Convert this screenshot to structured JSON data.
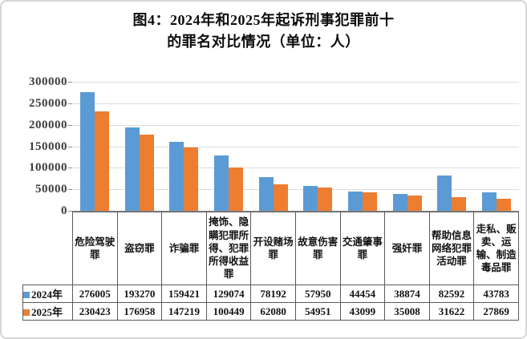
{
  "title": {
    "line1": "图4：2024年和2025年起诉刑事犯罪前十",
    "line2": "的罪名对比情况（单位：人）"
  },
  "chart_data": {
    "type": "bar",
    "title": "图4：2024年和2025年起诉刑事犯罪前十的罪名对比情况（单位：人）",
    "unit": "人",
    "categories": [
      "危险驾驶罪",
      "盗窃罪",
      "诈骗罪",
      "掩饰、隐瞒犯罪所得、犯罪所得收益罪",
      "开设赌场罪",
      "故意伤害罪",
      "交通肇事罪",
      "强奸罪",
      "帮助信息网络犯罪活动罪",
      "走私、贩卖、运输、制造毒品罪"
    ],
    "series": [
      {
        "name": "2024年",
        "color": "#5B9BD5",
        "values": [
          276005,
          193270,
          159421,
          129074,
          78192,
          57950,
          44454,
          38874,
          82592,
          43783
        ]
      },
      {
        "name": "2025年",
        "color": "#ED7D31",
        "values": [
          230423,
          176958,
          147219,
          100449,
          62080,
          54951,
          43099,
          35008,
          31622,
          27869
        ]
      }
    ],
    "ylim": [
      0,
      300000
    ],
    "ytick_interval": 50000,
    "yticks": [
      "300000",
      "250000",
      "200000",
      "150000",
      "100000",
      "50000",
      "0"
    ],
    "xlabel": "",
    "ylabel": "",
    "grid": true,
    "legend_position": "data-table-left"
  },
  "colors": {
    "bar_2024": "#5B9BD5",
    "bar_2025": "#ED7D31",
    "gridline": "#dcdcdc",
    "axis": "#8a8a8a",
    "table_border": "#5a5a5a"
  }
}
